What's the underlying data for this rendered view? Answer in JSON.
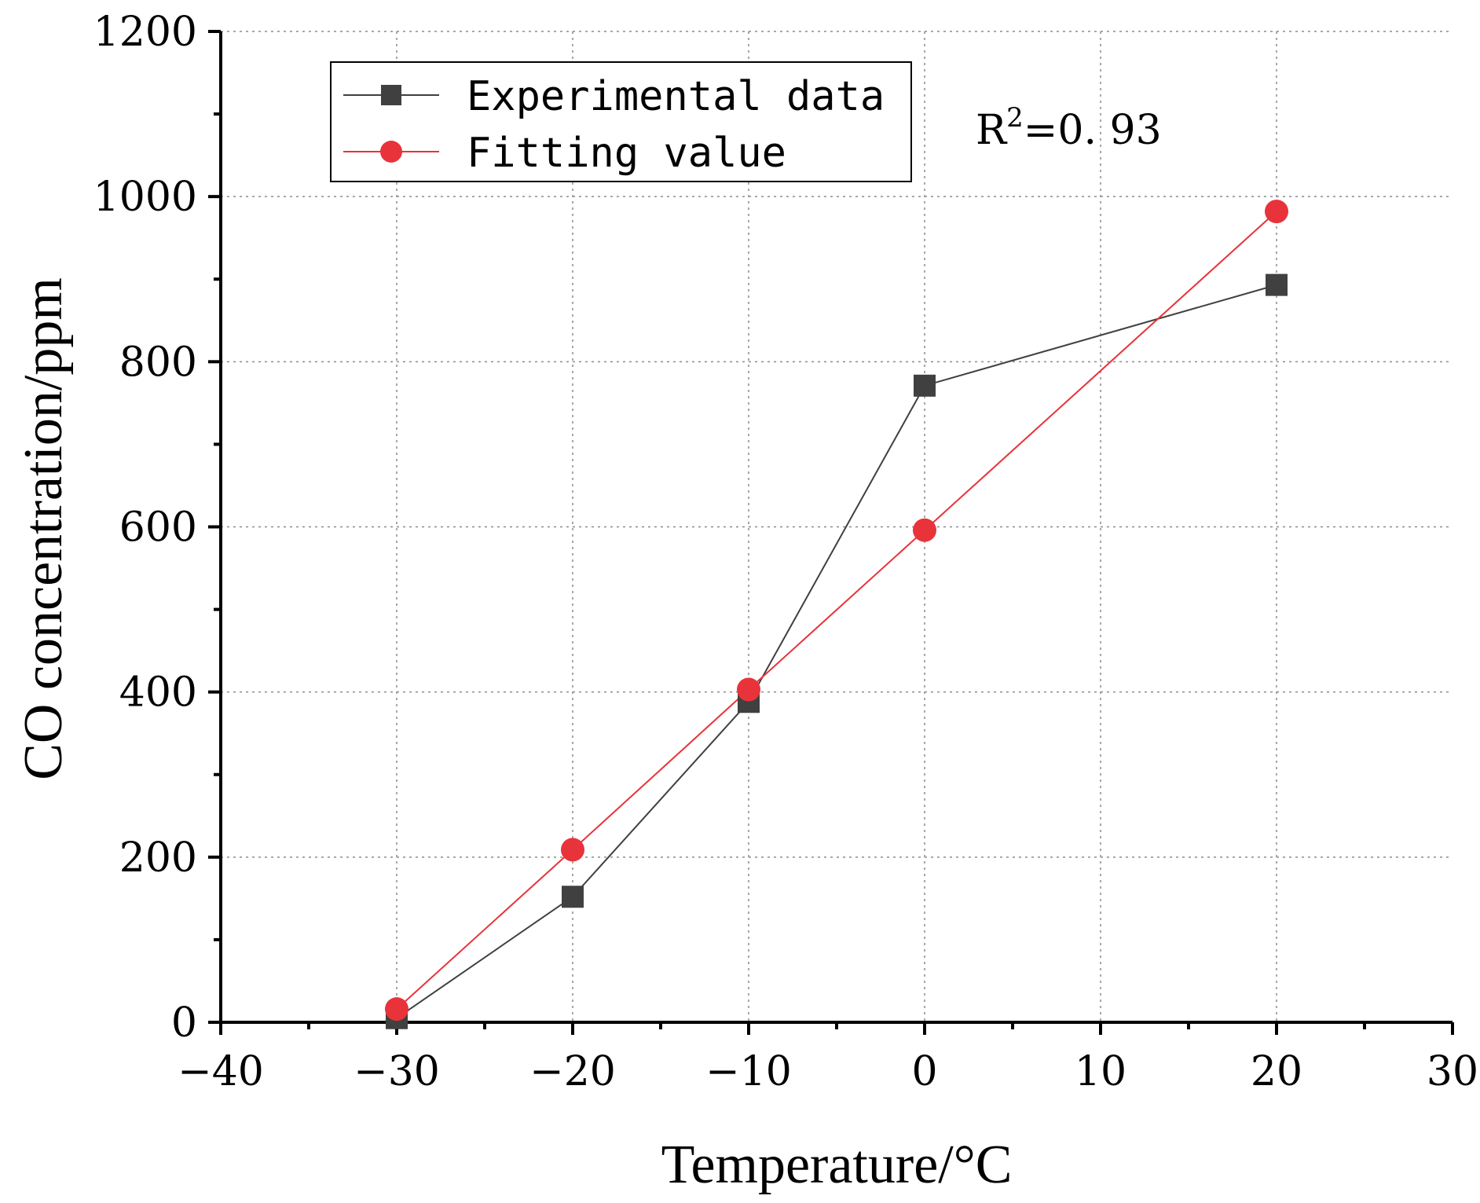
{
  "chart_data": {
    "type": "line",
    "title": "",
    "xlabel": "Temperature/°C",
    "ylabel": "CO concentration/ppm",
    "xlim": [
      -40,
      30
    ],
    "ylim": [
      0,
      1200
    ],
    "xticks": [
      -40,
      -30,
      -20,
      -10,
      0,
      10,
      20,
      30
    ],
    "yticks": [
      0,
      200,
      400,
      600,
      800,
      1000,
      1200
    ],
    "xtick_labels": [
      "−40",
      "−30",
      "−20",
      "−10",
      "0",
      "10",
      "20",
      "30"
    ],
    "ytick_labels": [
      "0",
      "200",
      "400",
      "600",
      "800",
      "1000",
      "1200"
    ],
    "grid": true,
    "legend_position": "top-left",
    "series": [
      {
        "name": "Experimental data",
        "marker": "square",
        "color": "#404040",
        "x": [
          -30,
          -20,
          -10,
          0,
          20
        ],
        "values": [
          5,
          152,
          388,
          771,
          893
        ]
      },
      {
        "name": "Fitting value",
        "marker": "circle",
        "color": "#e8333a",
        "x": [
          -30,
          -20,
          -10,
          0,
          20
        ],
        "values": [
          16,
          209,
          403,
          596,
          982
        ]
      }
    ],
    "annotation": {
      "base": "R",
      "superscript": "2",
      "rest": "=0. 93"
    }
  }
}
